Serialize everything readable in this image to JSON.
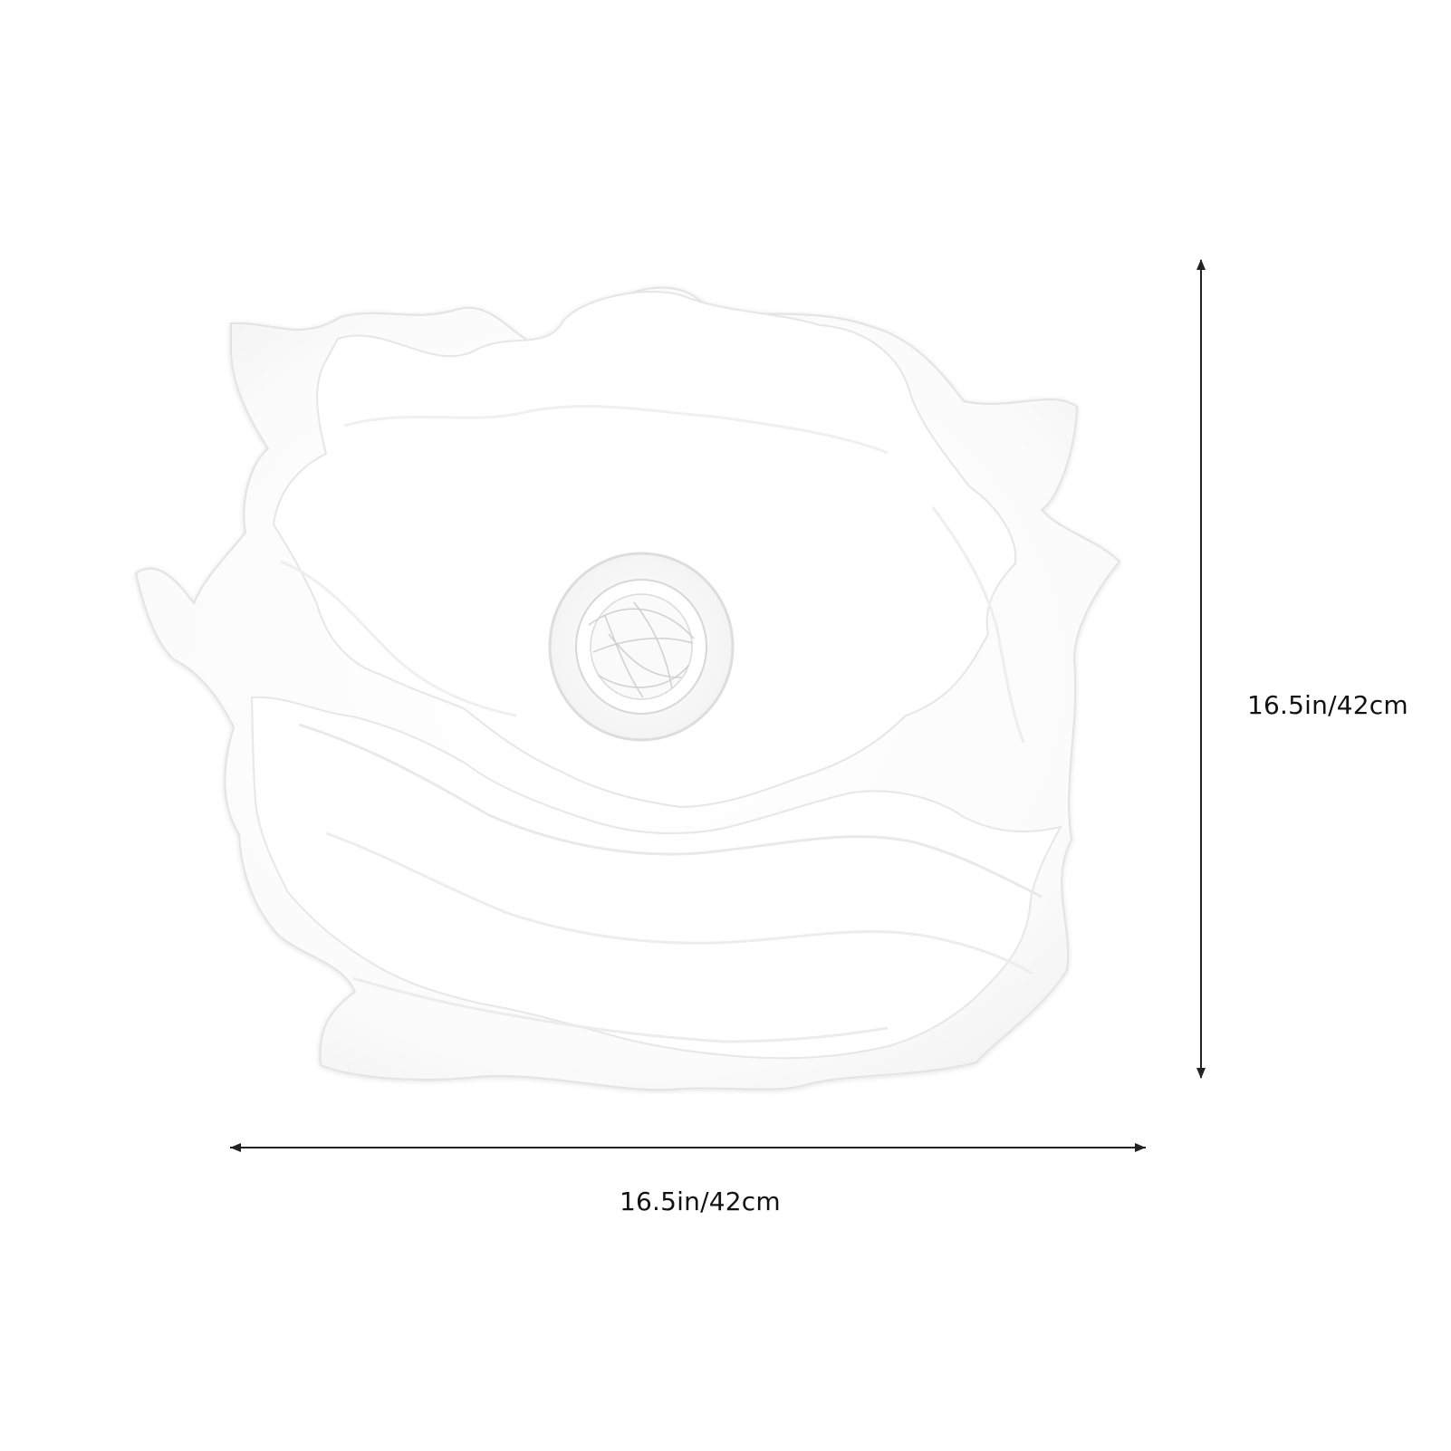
{
  "product": {
    "icon": "paper-flower-lamp-shade-image",
    "color": "#ffffff"
  },
  "dimensions": {
    "height_label": "16.5in/42cm",
    "width_label": "16.5in/42cm",
    "line_color": "#222222"
  }
}
